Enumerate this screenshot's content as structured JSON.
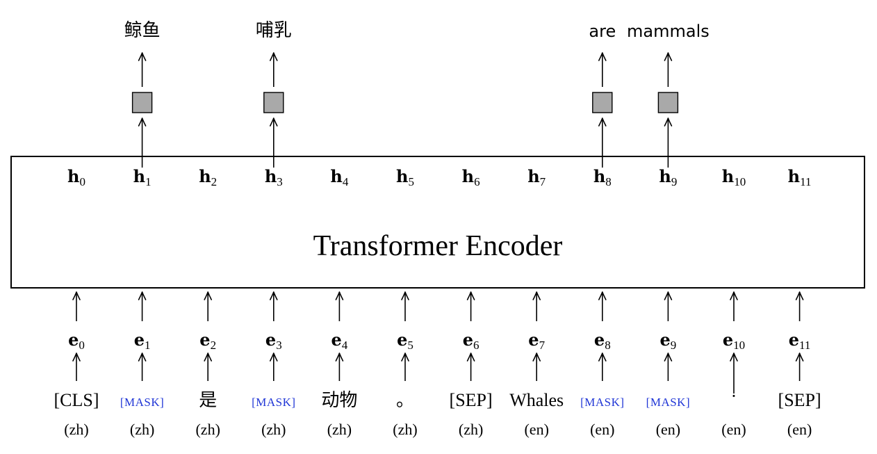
{
  "encoder": {
    "title": "Transformer Encoder"
  },
  "hidden_states": [
    {
      "sym": "h",
      "sub": "0"
    },
    {
      "sym": "h",
      "sub": "1"
    },
    {
      "sym": "h",
      "sub": "2"
    },
    {
      "sym": "h",
      "sub": "3"
    },
    {
      "sym": "h",
      "sub": "4"
    },
    {
      "sym": "h",
      "sub": "5"
    },
    {
      "sym": "h",
      "sub": "6"
    },
    {
      "sym": "h",
      "sub": "7"
    },
    {
      "sym": "h",
      "sub": "8"
    },
    {
      "sym": "h",
      "sub": "9"
    },
    {
      "sym": "h",
      "sub": "10"
    },
    {
      "sym": "h",
      "sub": "11"
    }
  ],
  "embeddings": [
    {
      "sym": "e",
      "sub": "0"
    },
    {
      "sym": "e",
      "sub": "1"
    },
    {
      "sym": "e",
      "sub": "2"
    },
    {
      "sym": "e",
      "sub": "3"
    },
    {
      "sym": "e",
      "sub": "4"
    },
    {
      "sym": "e",
      "sub": "5"
    },
    {
      "sym": "e",
      "sub": "6"
    },
    {
      "sym": "e",
      "sub": "7"
    },
    {
      "sym": "e",
      "sub": "8"
    },
    {
      "sym": "e",
      "sub": "9"
    },
    {
      "sym": "e",
      "sub": "10"
    },
    {
      "sym": "e",
      "sub": "11"
    }
  ],
  "tokens": [
    {
      "text": "[CLS]",
      "masked": false,
      "lang": "(zh)"
    },
    {
      "text": "[MASK]",
      "masked": true,
      "lang": "(zh)"
    },
    {
      "text": "是",
      "masked": false,
      "lang": "(zh)"
    },
    {
      "text": "[MASK]",
      "masked": true,
      "lang": "(zh)"
    },
    {
      "text": "动物",
      "masked": false,
      "lang": "(zh)"
    },
    {
      "text": "。",
      "masked": false,
      "lang": "(zh)"
    },
    {
      "text": "[SEP]",
      "masked": false,
      "lang": "(zh)"
    },
    {
      "text": "Whales",
      "masked": false,
      "lang": "(en)"
    },
    {
      "text": "[MASK]",
      "masked": true,
      "lang": "(en)"
    },
    {
      "text": "[MASK]",
      "masked": true,
      "lang": "(en)"
    },
    {
      "text": "·",
      "masked": false,
      "lang": "(en)"
    },
    {
      "text": "[SEP]",
      "masked": false,
      "lang": "(en)"
    }
  ],
  "predictions": [
    {
      "position": 1,
      "text": "鲸鱼"
    },
    {
      "position": 3,
      "text": "哺乳"
    },
    {
      "position": 8,
      "text": "are"
    },
    {
      "position": 9,
      "text": "mammals"
    }
  ],
  "colors": {
    "mask_text": "#1f35d6",
    "prediction_box": "#a9a9a9",
    "stroke": "#000000"
  }
}
